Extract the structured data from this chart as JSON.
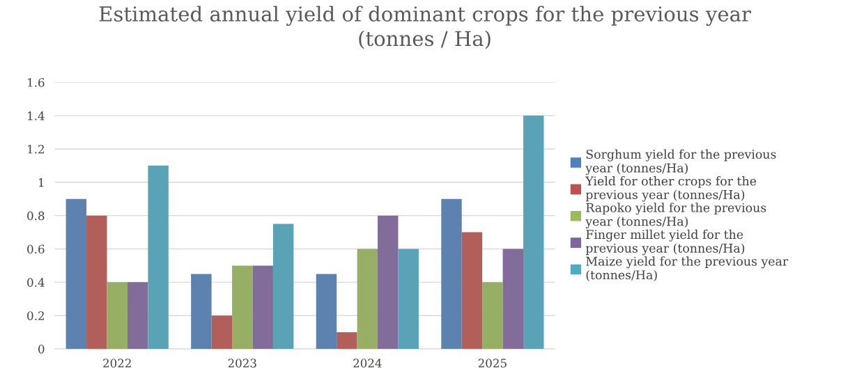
{
  "chart_data": {
    "type": "bar",
    "title": "Estimated annual yield of dominant crops for the previous year (tonnes / Ha)",
    "categories": [
      "2022",
      "2023",
      "2024",
      "2025"
    ],
    "series": [
      {
        "name": "Sorghum yield for the previous year (tonnes/Ha)",
        "color": "#4f81bd",
        "values": [
          0.9,
          0.45,
          0.45,
          0.9
        ]
      },
      {
        "name": "Yield for other crops for the previous year (tonnes/Ha)",
        "color": "#c0504d",
        "values": [
          0.8,
          0.2,
          0.1,
          0.7
        ]
      },
      {
        "name": "Rapoko yield for the previous year (tonnes/Ha)",
        "color": "#9bbb59",
        "values": [
          0.4,
          0.5,
          0.6,
          0.4
        ]
      },
      {
        "name": "Finger millet yield for the previous year (tonnes/Ha)",
        "color": "#8064a2",
        "values": [
          0.4,
          0.5,
          0.8,
          0.6
        ]
      },
      {
        "name": "Maize yield for the previous year (tonnes/Ha)",
        "color": "#4bacc6",
        "values": [
          1.1,
          0.75,
          0.6,
          1.4
        ]
      }
    ],
    "ylim": [
      0,
      1.6
    ],
    "yticks": [
      0,
      0.2,
      0.4,
      0.6,
      0.8,
      1,
      1.2,
      1.4,
      1.6
    ],
    "grid": "y",
    "legend": "right"
  }
}
